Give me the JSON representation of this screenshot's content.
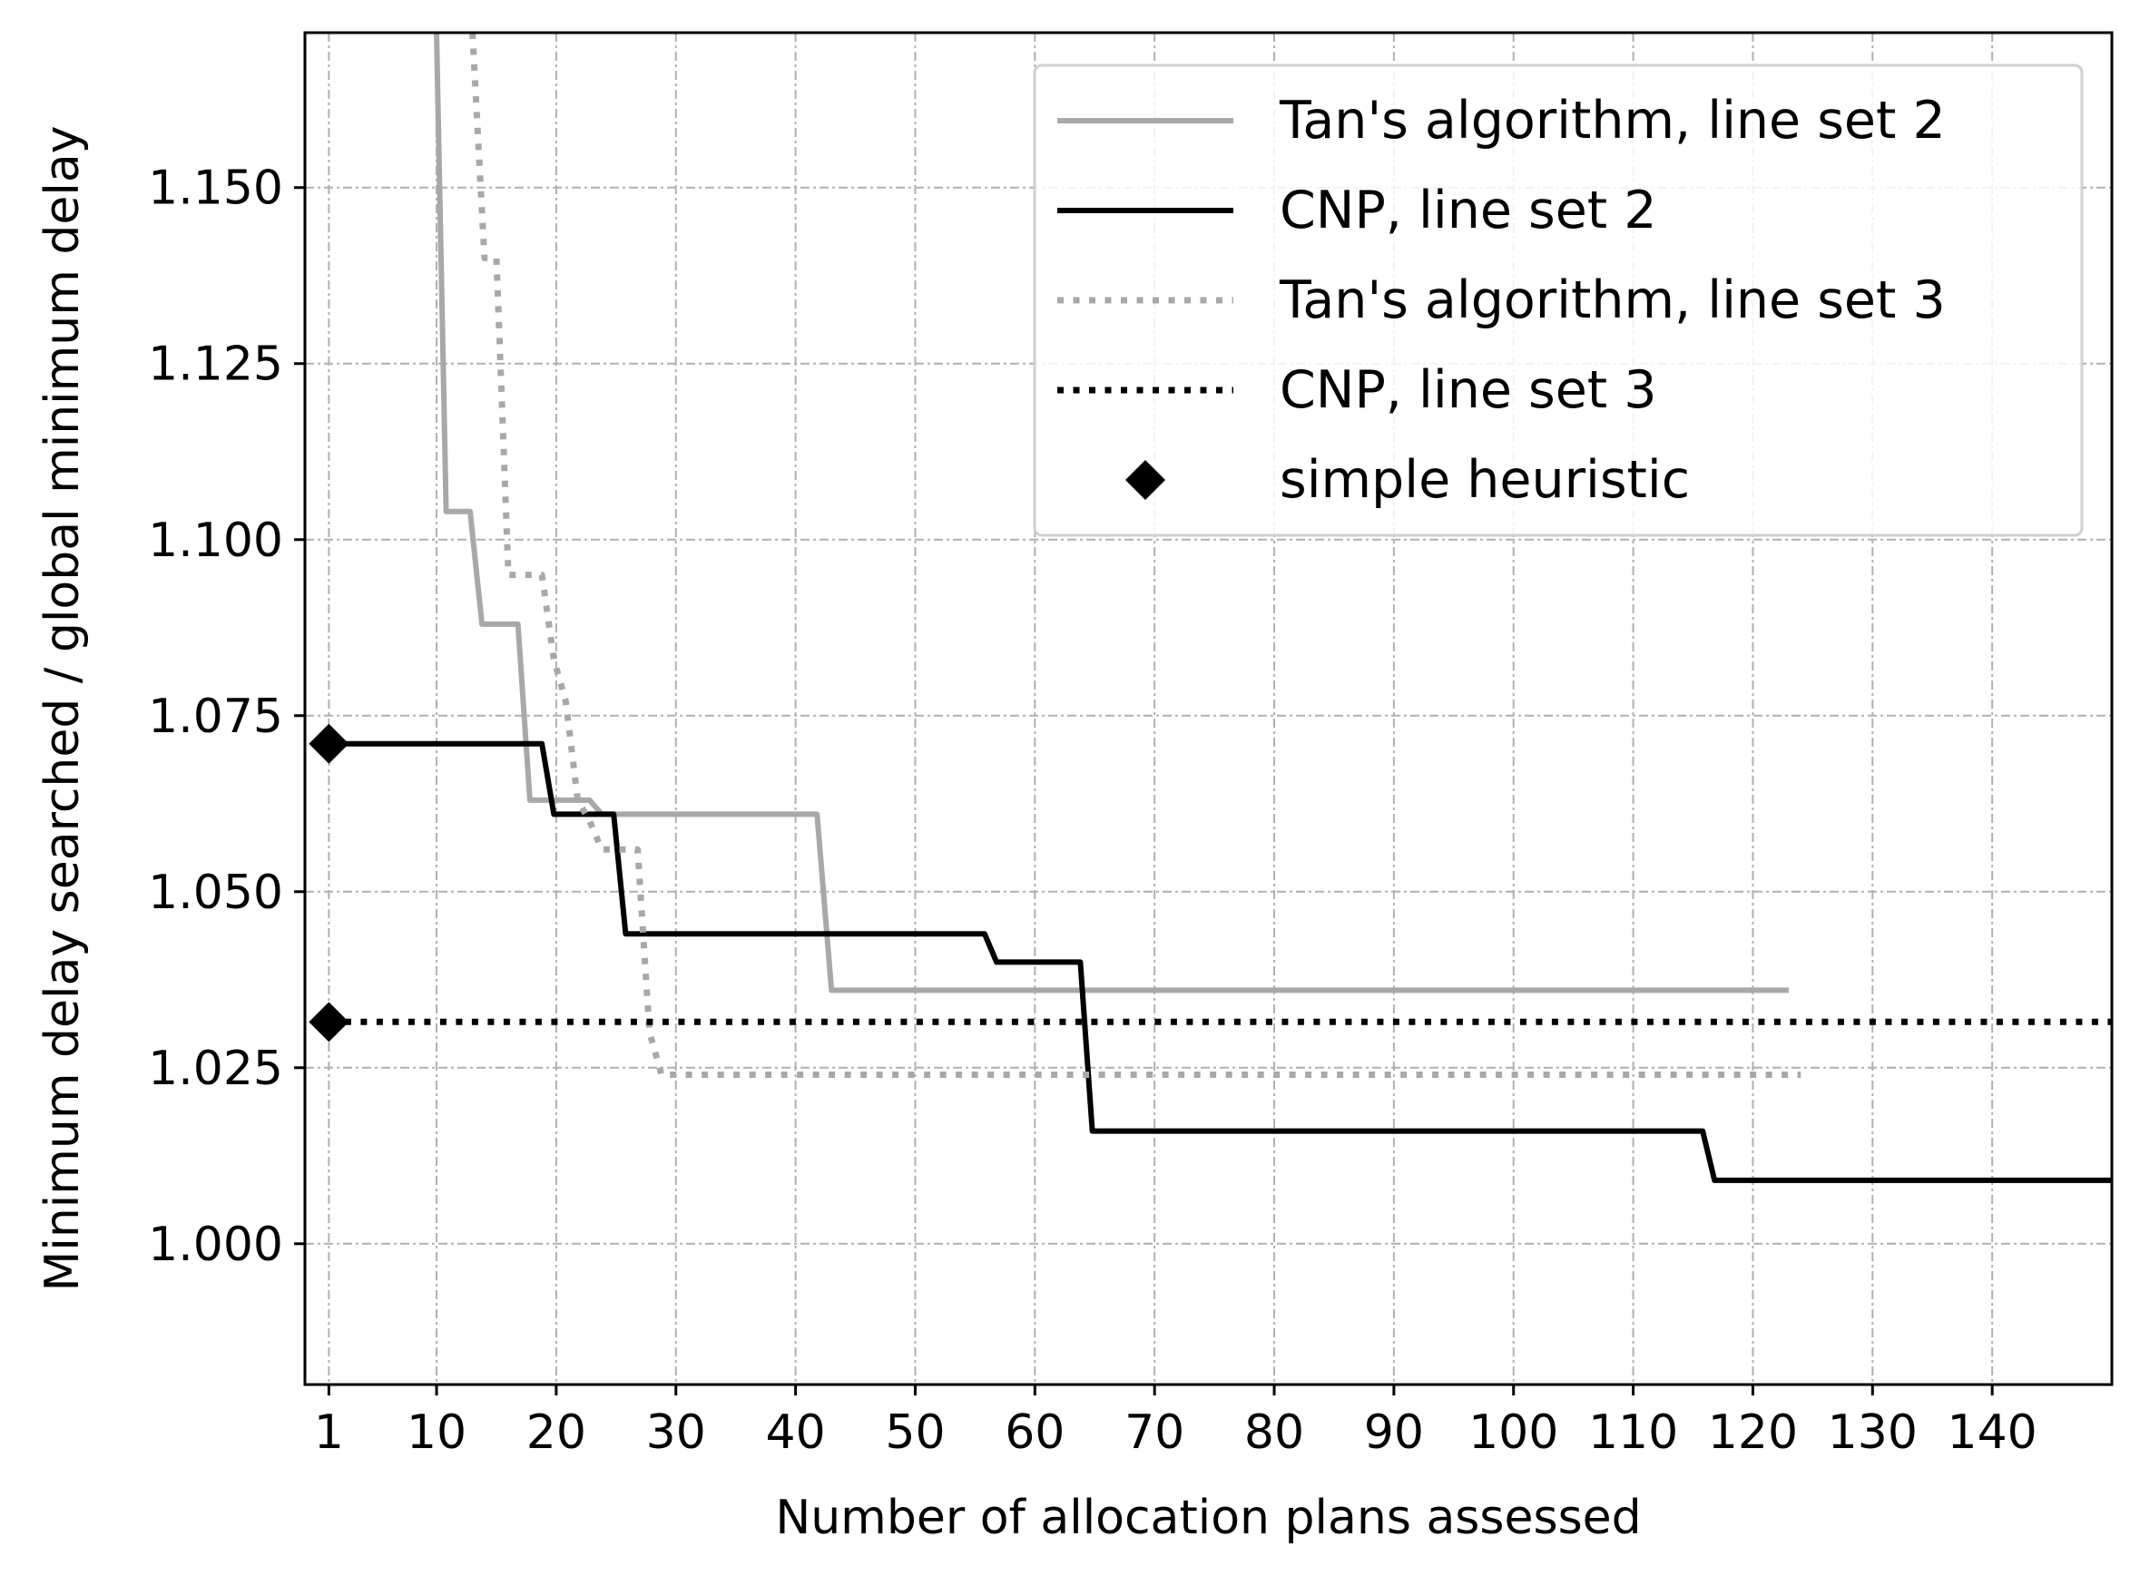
{
  "chart_data": {
    "type": "line",
    "title": "",
    "xlabel": "Number of allocation plans assessed",
    "ylabel": "Minimum delay searched / global minimum delay",
    "xlim": [
      -1,
      150
    ],
    "ylim": [
      0.98,
      1.172
    ],
    "xticks": [
      1,
      10,
      20,
      30,
      40,
      50,
      60,
      70,
      80,
      90,
      100,
      110,
      120,
      130,
      140
    ],
    "xtick_labels": [
      "1",
      "10",
      "20",
      "30",
      "40",
      "50",
      "60",
      "70",
      "80",
      "90",
      "100",
      "110",
      "120",
      "130",
      "140"
    ],
    "yticks": [
      1.0,
      1.025,
      1.05,
      1.075,
      1.1,
      1.125,
      1.15
    ],
    "ytick_labels": [
      "1.000",
      "1.025",
      "1.050",
      "1.075",
      "1.100",
      "1.125",
      "1.150"
    ],
    "grid": true,
    "legend_position": "top-right",
    "series": [
      {
        "name": "Tan's algorithm, line set 2",
        "color": "#a8a8a8",
        "style": "solid",
        "x": [
          10,
          10.8,
          12.8,
          13.8,
          16.8,
          17.8,
          22.8,
          23.8,
          41.8,
          43,
          123
        ],
        "y": [
          1.172,
          1.104,
          1.104,
          1.088,
          1.088,
          1.063,
          1.063,
          1.061,
          1.061,
          1.036,
          1.036
        ]
      },
      {
        "name": "CNP, line set 2",
        "color": "#000000",
        "style": "solid",
        "x": [
          1,
          18.8,
          19.8,
          24.8,
          25.8,
          55.8,
          56.8,
          63.8,
          64.8,
          115.8,
          116.8,
          150
        ],
        "y": [
          1.071,
          1.071,
          1.061,
          1.061,
          1.044,
          1.044,
          1.04,
          1.04,
          1.016,
          1.016,
          1.009,
          1.009
        ]
      },
      {
        "name": "Tan's algorithm, line set 3",
        "color": "#a8a8a8",
        "style": "dotted",
        "x": [
          13,
          14,
          15,
          16,
          18.8,
          19.8,
          20.8,
          21.8,
          22.8,
          23.8,
          26.8,
          27.8,
          28.8,
          29.8,
          124
        ],
        "y": [
          1.172,
          1.14,
          1.14,
          1.095,
          1.095,
          1.083,
          1.077,
          1.063,
          1.06,
          1.056,
          1.056,
          1.03,
          1.024,
          1.024,
          1.024
        ]
      },
      {
        "name": "CNP, line set 3",
        "color": "#000000",
        "style": "dotted",
        "x": [
          1,
          150
        ],
        "y": [
          1.0315,
          1.0315
        ]
      },
      {
        "name": "simple heuristic",
        "color": "#000000",
        "style": "marker",
        "marker": "diamond",
        "x": [
          1,
          1
        ],
        "y": [
          1.071,
          1.0315
        ]
      }
    ]
  }
}
